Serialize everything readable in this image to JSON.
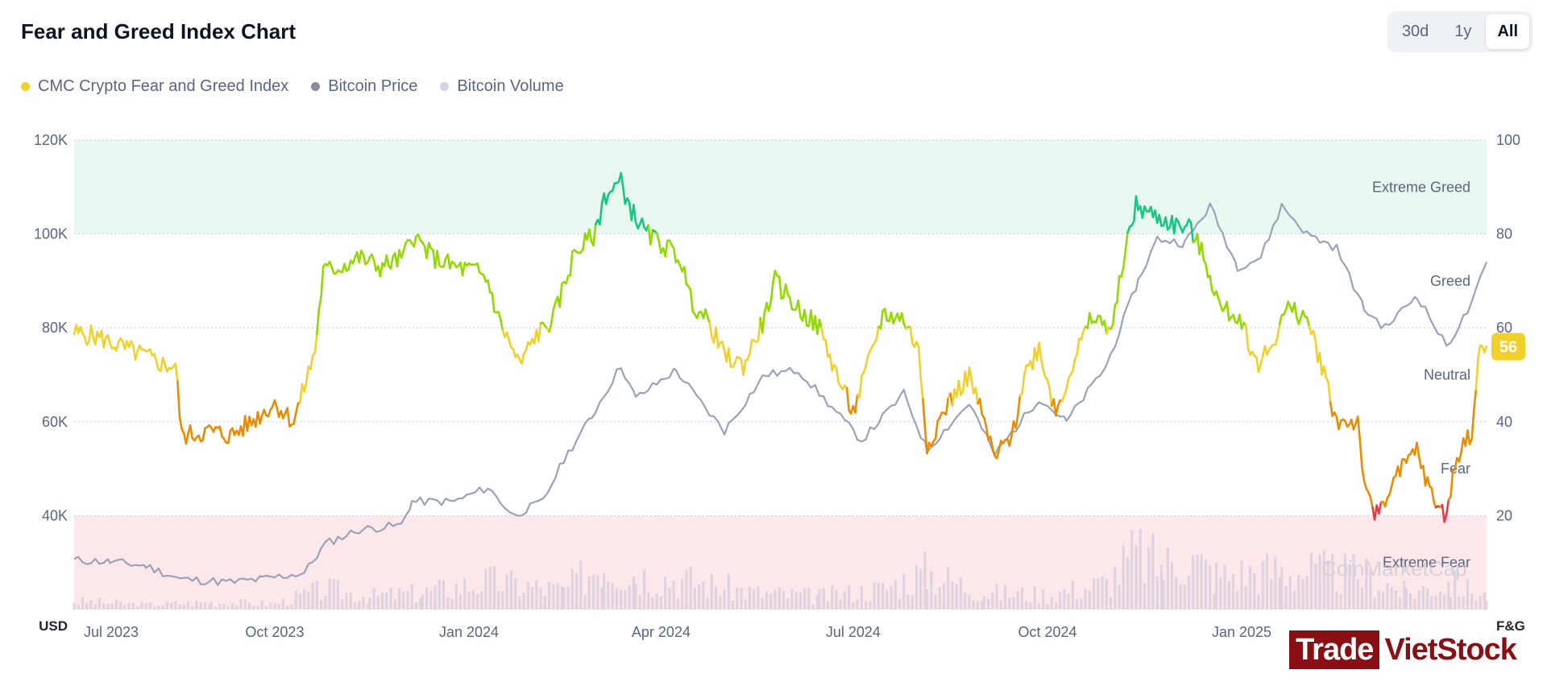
{
  "header": {
    "title": "Fear and Greed Index Chart",
    "ranges": [
      {
        "label": "30d",
        "active": false
      },
      {
        "label": "1y",
        "active": false
      },
      {
        "label": "All",
        "active": true
      }
    ]
  },
  "legend": [
    {
      "label": "CMC Crypto Fear and Greed Index",
      "color": "#f0d12c"
    },
    {
      "label": "Bitcoin Price",
      "color": "#858ca2"
    },
    {
      "label": "Bitcoin Volume",
      "color": "#cfd6e4"
    }
  ],
  "watermark": "CoinMarketCap",
  "brand": {
    "left": "Trade",
    "right": "VietStock"
  },
  "chart_data": {
    "type": "line",
    "title": "Fear and Greed Index Chart",
    "x_range": [
      "2023-06-28",
      "2025-04-27"
    ],
    "x_ticks": [
      {
        "date": "2023-07-01",
        "label": "Jul 2023"
      },
      {
        "date": "2023-10-01",
        "label": "Oct 2023"
      },
      {
        "date": "2024-01-01",
        "label": "Jan 2024"
      },
      {
        "date": "2024-04-01",
        "label": "Apr 2024"
      },
      {
        "date": "2024-07-01",
        "label": "Jul 2024"
      },
      {
        "date": "2024-10-01",
        "label": "Oct 2024"
      },
      {
        "date": "2025-01-01",
        "label": "Jan 2025"
      }
    ],
    "left_axis": {
      "unit": "USD",
      "ylim": [
        20000,
        120000
      ],
      "ticks": [
        {
          "value": 120000,
          "label": "120K"
        },
        {
          "value": 100000,
          "label": "100K"
        },
        {
          "value": 80000,
          "label": "80K"
        },
        {
          "value": 60000,
          "label": "60K"
        },
        {
          "value": 40000,
          "label": "40K"
        }
      ]
    },
    "right_axis": {
      "unit": "F&G",
      "ylim": [
        0,
        100
      ],
      "ticks": [
        {
          "value": 100,
          "label": "100"
        },
        {
          "value": 80,
          "label": "80"
        },
        {
          "value": 60,
          "label": "60"
        },
        {
          "value": 40,
          "label": "40"
        },
        {
          "value": 20,
          "label": "20"
        }
      ]
    },
    "zones": [
      {
        "label": "Extreme Greed",
        "from": 80,
        "to": 100,
        "color": "#e8f8f1",
        "label_value": 90
      },
      {
        "label": "Greed",
        "from": 60,
        "to": 80,
        "color": "",
        "label_value": 70
      },
      {
        "label": "Neutral",
        "from": 40,
        "to": 60,
        "color": "",
        "label_value": 50
      },
      {
        "label": "Fear",
        "from": 20,
        "to": 40,
        "color": "",
        "label_value": 30
      },
      {
        "label": "Extreme Fear",
        "from": 0,
        "to": 20,
        "color": "#fce8ea",
        "label_value": 10
      }
    ],
    "current_value": {
      "label": "56",
      "value": 56,
      "color": "#f0d12c"
    },
    "series": [
      {
        "name": "CMC Crypto Fear and Greed Index",
        "axis": "right",
        "points": [
          [
            "2023-06-28",
            59
          ],
          [
            "2023-07-10",
            58
          ],
          [
            "2023-07-20",
            56
          ],
          [
            "2023-08-01",
            54
          ],
          [
            "2023-08-10",
            52
          ],
          [
            "2023-08-15",
            52
          ],
          [
            "2023-08-18",
            37
          ],
          [
            "2023-09-01",
            38
          ],
          [
            "2023-09-10",
            37
          ],
          [
            "2023-09-20",
            40
          ],
          [
            "2023-10-01",
            44
          ],
          [
            "2023-10-10",
            40
          ],
          [
            "2023-10-20",
            55
          ],
          [
            "2023-10-24",
            72
          ],
          [
            "2023-11-01",
            73
          ],
          [
            "2023-11-10",
            75
          ],
          [
            "2023-11-20",
            73
          ],
          [
            "2023-12-01",
            75
          ],
          [
            "2023-12-05",
            80
          ],
          [
            "2023-12-15",
            75
          ],
          [
            "2023-12-25",
            73
          ],
          [
            "2024-01-05",
            72
          ],
          [
            "2024-01-10",
            70
          ],
          [
            "2024-01-15",
            62
          ],
          [
            "2024-01-25",
            52
          ],
          [
            "2024-02-01",
            58
          ],
          [
            "2024-02-10",
            62
          ],
          [
            "2024-02-20",
            76
          ],
          [
            "2024-03-01",
            80
          ],
          [
            "2024-03-05",
            88
          ],
          [
            "2024-03-13",
            91
          ],
          [
            "2024-03-18",
            85
          ],
          [
            "2024-03-25",
            80
          ],
          [
            "2024-04-01",
            78
          ],
          [
            "2024-04-10",
            75
          ],
          [
            "2024-04-15",
            66
          ],
          [
            "2024-04-25",
            60
          ],
          [
            "2024-05-01",
            54
          ],
          [
            "2024-05-10",
            52
          ],
          [
            "2024-05-20",
            62
          ],
          [
            "2024-05-25",
            70
          ],
          [
            "2024-06-05",
            64
          ],
          [
            "2024-06-15",
            60
          ],
          [
            "2024-06-25",
            48
          ],
          [
            "2024-07-01",
            42
          ],
          [
            "2024-07-10",
            55
          ],
          [
            "2024-07-15",
            63
          ],
          [
            "2024-07-25",
            62
          ],
          [
            "2024-08-01",
            55
          ],
          [
            "2024-08-05",
            35
          ],
          [
            "2024-08-15",
            44
          ],
          [
            "2024-08-25",
            50
          ],
          [
            "2024-09-01",
            40
          ],
          [
            "2024-09-06",
            32
          ],
          [
            "2024-09-15",
            38
          ],
          [
            "2024-09-20",
            50
          ],
          [
            "2024-09-27",
            56
          ],
          [
            "2024-10-05",
            42
          ],
          [
            "2024-10-15",
            55
          ],
          [
            "2024-10-22",
            62
          ],
          [
            "2024-11-01",
            60
          ],
          [
            "2024-11-06",
            75
          ],
          [
            "2024-11-12",
            86
          ],
          [
            "2024-11-20",
            84
          ],
          [
            "2024-11-30",
            82
          ],
          [
            "2024-12-08",
            81
          ],
          [
            "2024-12-15",
            74
          ],
          [
            "2024-12-22",
            64
          ],
          [
            "2025-01-01",
            62
          ],
          [
            "2025-01-08",
            52
          ],
          [
            "2025-01-15",
            56
          ],
          [
            "2025-01-22",
            64
          ],
          [
            "2025-02-01",
            62
          ],
          [
            "2025-02-08",
            52
          ],
          [
            "2025-02-15",
            40
          ],
          [
            "2025-02-25",
            40
          ],
          [
            "2025-03-01",
            24
          ],
          [
            "2025-03-05",
            20
          ],
          [
            "2025-03-15",
            28
          ],
          [
            "2025-03-25",
            34
          ],
          [
            "2025-04-01",
            24
          ],
          [
            "2025-04-08",
            20
          ],
          [
            "2025-04-13",
            33
          ],
          [
            "2025-04-20",
            38
          ],
          [
            "2025-04-24",
            56
          ],
          [
            "2025-04-27",
            56
          ]
        ]
      },
      {
        "name": "Bitcoin Price",
        "axis": "left",
        "color": "#9aa3b6",
        "points": [
          [
            "2023-06-28",
            30500
          ],
          [
            "2023-07-15",
            30200
          ],
          [
            "2023-08-01",
            29300
          ],
          [
            "2023-08-17",
            26500
          ],
          [
            "2023-09-10",
            25800
          ],
          [
            "2023-09-25",
            26500
          ],
          [
            "2023-10-15",
            27800
          ],
          [
            "2023-10-25",
            34000
          ],
          [
            "2023-11-10",
            37000
          ],
          [
            "2023-11-30",
            38000
          ],
          [
            "2023-12-05",
            43000
          ],
          [
            "2023-12-25",
            43000
          ],
          [
            "2024-01-10",
            46000
          ],
          [
            "2024-01-22",
            40000
          ],
          [
            "2024-02-05",
            43000
          ],
          [
            "2024-02-15",
            52000
          ],
          [
            "2024-02-28",
            61000
          ],
          [
            "2024-03-13",
            72000
          ],
          [
            "2024-03-20",
            65000
          ],
          [
            "2024-04-08",
            71000
          ],
          [
            "2024-04-20",
            64000
          ],
          [
            "2024-05-01",
            58000
          ],
          [
            "2024-05-20",
            70000
          ],
          [
            "2024-06-05",
            71000
          ],
          [
            "2024-06-25",
            61000
          ],
          [
            "2024-07-05",
            56000
          ],
          [
            "2024-07-25",
            66000
          ],
          [
            "2024-08-05",
            54000
          ],
          [
            "2024-08-25",
            64000
          ],
          [
            "2024-09-06",
            53000
          ],
          [
            "2024-09-27",
            65000
          ],
          [
            "2024-10-10",
            60000
          ],
          [
            "2024-10-29",
            72000
          ],
          [
            "2024-11-13",
            90000
          ],
          [
            "2024-11-22",
            99000
          ],
          [
            "2024-12-05",
            98000
          ],
          [
            "2024-12-17",
            106000
          ],
          [
            "2024-12-30",
            93000
          ],
          [
            "2025-01-10",
            95000
          ],
          [
            "2025-01-20",
            106000
          ],
          [
            "2025-02-01",
            100000
          ],
          [
            "2025-02-15",
            97000
          ],
          [
            "2025-02-28",
            84000
          ],
          [
            "2025-03-10",
            80000
          ],
          [
            "2025-03-25",
            87000
          ],
          [
            "2025-04-08",
            76000
          ],
          [
            "2025-04-20",
            85000
          ],
          [
            "2025-04-27",
            94000
          ]
        ]
      },
      {
        "name": "Bitcoin Volume",
        "axis": "volume",
        "color": "#d9cfdd",
        "points": [
          [
            "2023-06-28",
            9
          ],
          [
            "2023-08-01",
            5
          ],
          [
            "2023-09-01",
            8
          ],
          [
            "2023-10-01",
            6
          ],
          [
            "2023-10-25",
            22
          ],
          [
            "2023-11-15",
            14
          ],
          [
            "2023-12-10",
            18
          ],
          [
            "2024-01-11",
            30
          ],
          [
            "2024-02-15",
            20
          ],
          [
            "2024-03-05",
            52
          ],
          [
            "2024-03-20",
            38
          ],
          [
            "2024-04-15",
            30
          ],
          [
            "2024-05-15",
            18
          ],
          [
            "2024-06-15",
            14
          ],
          [
            "2024-07-15",
            22
          ],
          [
            "2024-08-05",
            40
          ],
          [
            "2024-09-01",
            18
          ],
          [
            "2024-10-01",
            16
          ],
          [
            "2024-10-29",
            28
          ],
          [
            "2024-11-12",
            60
          ],
          [
            "2024-11-25",
            45
          ],
          [
            "2024-12-05",
            58
          ],
          [
            "2024-12-20",
            36
          ],
          [
            "2025-01-20",
            42
          ],
          [
            "2025-02-05",
            40
          ],
          [
            "2025-03-01",
            36
          ],
          [
            "2025-03-20",
            18
          ],
          [
            "2025-04-10",
            28
          ],
          [
            "2025-04-27",
            14
          ]
        ]
      }
    ],
    "grid": true,
    "legend_position": "top-left"
  }
}
